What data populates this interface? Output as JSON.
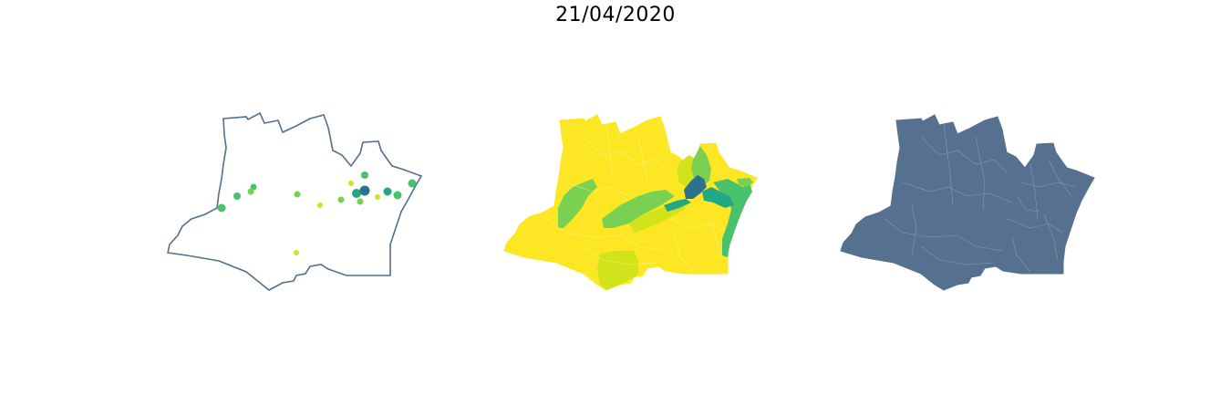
{
  "title": "21/04/2020",
  "colors": {
    "outline": "#52708f",
    "fill_dark": "#56718f",
    "yellow": "#fde725",
    "yellow_green": "#d2e21b",
    "light_green": "#7ad151",
    "green": "#4ac16d",
    "teal": "#22a884",
    "blue": "#2c728e",
    "background": "#ffffff"
  },
  "panels": [
    {
      "name": "points-map",
      "kind": "bubble"
    },
    {
      "name": "choropleth-map",
      "kind": "choropleth"
    },
    {
      "name": "municipality-map",
      "kind": "boundaries"
    }
  ]
}
